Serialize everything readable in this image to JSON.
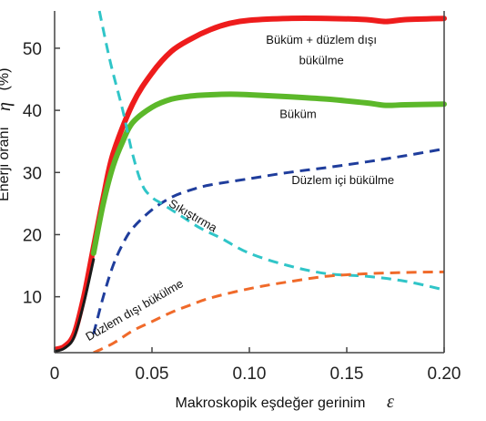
{
  "chart_data": {
    "type": "line",
    "xlabel": "Makroskopik eşdeğer gerinim",
    "xlabel_symbol": "ε",
    "ylabel": "Enerji oranı",
    "ylabel_symbol": "η",
    "ylabel_unit": "(%)",
    "xlim": [
      0,
      0.2
    ],
    "ylim": [
      1,
      56
    ],
    "x_ticks": [
      {
        "value": 0,
        "label": "0"
      },
      {
        "value": 0.05,
        "label": "0.05"
      },
      {
        "value": 0.1,
        "label": "0.10"
      },
      {
        "value": 0.15,
        "label": "0.15"
      },
      {
        "value": 0.2,
        "label": "0.20"
      }
    ],
    "y_ticks": [
      {
        "value": 10,
        "label": "10"
      },
      {
        "value": 20,
        "label": "20"
      },
      {
        "value": 30,
        "label": "30"
      },
      {
        "value": 40,
        "label": "40"
      },
      {
        "value": 50,
        "label": "50"
      }
    ],
    "grid": false,
    "series": [
      {
        "id": "bukum-duzlem-disi",
        "color": "#ee1c1c",
        "style": "solid",
        "width": 6,
        "points": [
          [
            0,
            1.5
          ],
          [
            0.005,
            2
          ],
          [
            0.01,
            4
          ],
          [
            0.015,
            10
          ],
          [
            0.02,
            18
          ],
          [
            0.025,
            26
          ],
          [
            0.03,
            33
          ],
          [
            0.04,
            41
          ],
          [
            0.05,
            46
          ],
          [
            0.06,
            49.5
          ],
          [
            0.07,
            51.5
          ],
          [
            0.08,
            53
          ],
          [
            0.09,
            54
          ],
          [
            0.1,
            54.5
          ],
          [
            0.12,
            54.8
          ],
          [
            0.14,
            54.8
          ],
          [
            0.16,
            54.6
          ],
          [
            0.17,
            54.3
          ],
          [
            0.18,
            54.6
          ],
          [
            0.2,
            54.8
          ]
        ]
      },
      {
        "id": "bukum",
        "color": "#5cb82a",
        "style": "solid",
        "width": 6,
        "points": [
          [
            0.02,
            17
          ],
          [
            0.025,
            25
          ],
          [
            0.03,
            31
          ],
          [
            0.035,
            35
          ],
          [
            0.04,
            38
          ],
          [
            0.05,
            40.5
          ],
          [
            0.06,
            41.8
          ],
          [
            0.07,
            42.3
          ],
          [
            0.08,
            42.5
          ],
          [
            0.09,
            42.6
          ],
          [
            0.1,
            42.5
          ],
          [
            0.12,
            42.2
          ],
          [
            0.14,
            41.8
          ],
          [
            0.16,
            41.2
          ],
          [
            0.17,
            40.8
          ],
          [
            0.18,
            40.9
          ],
          [
            0.2,
            41
          ]
        ]
      },
      {
        "id": "duzlem-ici-bukulme",
        "color": "#1f3d9c",
        "style": "dashed",
        "width": 3,
        "points": [
          [
            0.02,
            4
          ],
          [
            0.025,
            10
          ],
          [
            0.03,
            15
          ],
          [
            0.035,
            18.5
          ],
          [
            0.04,
            21
          ],
          [
            0.05,
            24
          ],
          [
            0.06,
            26
          ],
          [
            0.07,
            27.2
          ],
          [
            0.08,
            28
          ],
          [
            0.1,
            29
          ],
          [
            0.12,
            30
          ],
          [
            0.14,
            30.8
          ],
          [
            0.16,
            31.7
          ],
          [
            0.18,
            32.7
          ],
          [
            0.2,
            33.8
          ]
        ]
      },
      {
        "id": "sikistirma",
        "color": "#30c5c8",
        "style": "dashed",
        "width": 3,
        "points": [
          [
            0.023,
            56
          ],
          [
            0.027,
            50
          ],
          [
            0.03,
            46
          ],
          [
            0.035,
            40
          ],
          [
            0.04,
            33
          ],
          [
            0.045,
            28
          ],
          [
            0.05,
            26
          ],
          [
            0.055,
            25
          ],
          [
            0.065,
            23
          ],
          [
            0.075,
            21
          ],
          [
            0.085,
            19.5
          ],
          [
            0.1,
            17
          ],
          [
            0.12,
            15
          ],
          [
            0.14,
            13.7
          ],
          [
            0.16,
            13.3
          ],
          [
            0.18,
            12.5
          ],
          [
            0.2,
            11.1
          ]
        ]
      },
      {
        "id": "duzlem-disi-bukulme",
        "color": "#f06a2a",
        "style": "dashed",
        "width": 3,
        "points": [
          [
            0.02,
            1
          ],
          [
            0.03,
            2.5
          ],
          [
            0.04,
            4.5
          ],
          [
            0.05,
            6
          ],
          [
            0.06,
            7.5
          ],
          [
            0.07,
            8.7
          ],
          [
            0.08,
            9.8
          ],
          [
            0.1,
            11.3
          ],
          [
            0.12,
            12.4
          ],
          [
            0.14,
            13.3
          ],
          [
            0.16,
            13.7
          ],
          [
            0.18,
            13.9
          ],
          [
            0.2,
            14
          ]
        ]
      },
      {
        "id": "black-base",
        "color": "#1a1a1a",
        "style": "solid",
        "width": 3,
        "points": [
          [
            0,
            1.2
          ],
          [
            0.005,
            1.7
          ],
          [
            0.01,
            3.5
          ],
          [
            0.015,
            9
          ],
          [
            0.02,
            16
          ]
        ]
      }
    ],
    "annotations": [
      {
        "id": "ann-bukum-duzlem-disi-1",
        "text": "Büküm + düzlem dışı",
        "x": 0.137,
        "y": 50.7,
        "rotate": 0
      },
      {
        "id": "ann-bukum-duzlem-disi-2",
        "text": "bükülme",
        "x": 0.137,
        "y": 47.4,
        "rotate": 0
      },
      {
        "id": "ann-bukum",
        "text": "Büküm",
        "x": 0.125,
        "y": 38.8,
        "rotate": 0
      },
      {
        "id": "ann-duzlem-ici",
        "text": "Düzlem içi bükülme",
        "x": 0.148,
        "y": 28.1,
        "rotate": 0
      },
      {
        "id": "ann-sikistirma",
        "text": "Sıkıştırma",
        "x": 0.07,
        "y": 22.5,
        "rotate": 30
      },
      {
        "id": "ann-duzlem-disi",
        "text": "Düzlem dışı bükülme",
        "x": 0.042,
        "y": 7.3,
        "rotate": -30
      }
    ]
  }
}
